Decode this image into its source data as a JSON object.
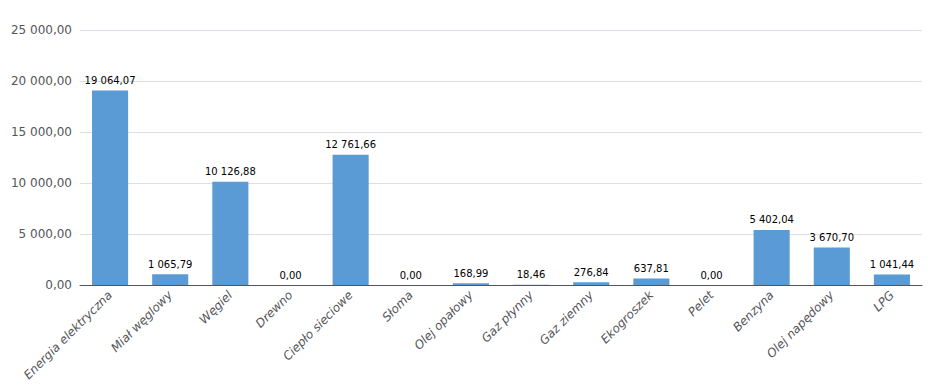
{
  "chart_data": {
    "type": "bar",
    "categories": [
      "Energia elektryczna",
      "Miał węglowy",
      "Węgiel",
      "Drewno",
      "Ciepło sieciowe",
      "Słoma",
      "Olej opałowy",
      "Gaz płynny",
      "Gaz ziemny",
      "Ekogroszek",
      "Pelet",
      "Benzyna",
      "Olej napędowy",
      "LPG"
    ],
    "values": [
      19064.07,
      1065.79,
      10126.88,
      0.0,
      12761.66,
      0.0,
      168.99,
      18.46,
      276.84,
      637.81,
      0.0,
      5402.04,
      3670.7,
      1041.44
    ],
    "value_labels": [
      "19 064,07",
      "1 065,79",
      "10 126,88",
      "0,00",
      "12 761,66",
      "0,00",
      "168,99",
      "18,46",
      "276,84",
      "637,81",
      "0,00",
      "5 402,04",
      "3 670,70",
      "1 041,44"
    ],
    "data_labels": true,
    "color": "#5B9BD5",
    "ylim": [
      0,
      25000
    ],
    "yticks": [
      {
        "value": 0,
        "label": "0,00"
      },
      {
        "value": 5000,
        "label": "5 000,00"
      },
      {
        "value": 10000,
        "label": "10 000,00"
      },
      {
        "value": 15000,
        "label": "15 000,00"
      },
      {
        "value": 20000,
        "label": "20 000,00"
      },
      {
        "value": 25000,
        "label": "25 000,00"
      }
    ],
    "grid": true
  }
}
